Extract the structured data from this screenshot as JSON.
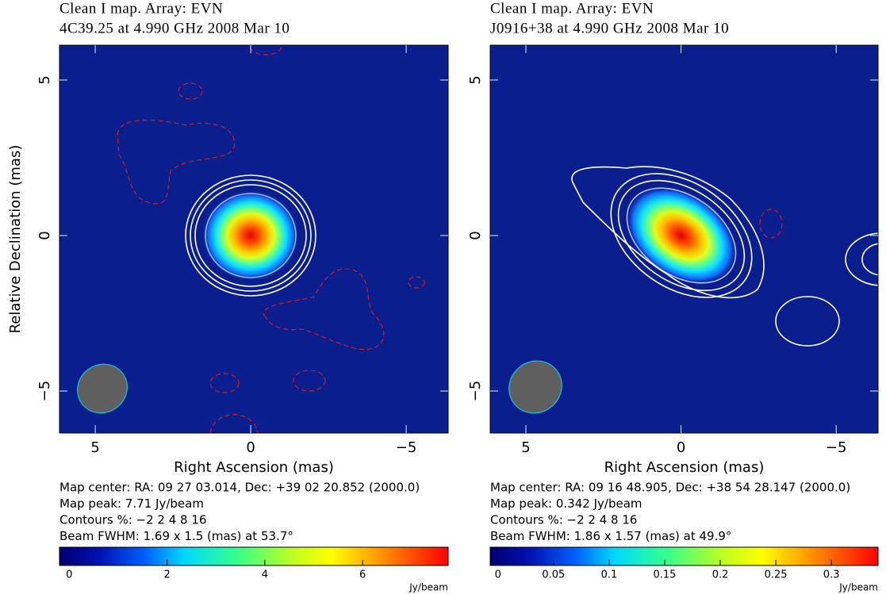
{
  "chart_data": [
    {
      "type": "map",
      "title": "Clean I map.  Array:  EVN",
      "subtitle": "4C39.25 at 4.990 GHz 2008 Mar 10",
      "x_label": "Right Ascension  (mas)",
      "y_label": "Relative Declination  (mas)",
      "xlim": [
        6.15,
        -6.35
      ],
      "ylim": [
        -6.35,
        6.12
      ],
      "xticks": [
        5,
        0,
        {
          "value": -5,
          "label": "−5"
        }
      ],
      "yticks": [
        5,
        0,
        {
          "value": -5,
          "label": "−5"
        }
      ],
      "notes": [
        "Map center:  RA: 09 27 03.014,  Dec: +39 02 20.852 (2000.0)",
        "Map peak: 7.71 Jy/beam",
        "Contours %: −2 2 4 8 16",
        "Beam FWHM: 1.69 x 1.5 (mas) at 53.7°"
      ],
      "colorbar": {
        "lim": [
          -0.2,
          7.75
        ],
        "ticks": [
          0,
          2,
          4,
          6
        ],
        "label": "Jy/beam"
      }
    },
    {
      "type": "map",
      "title": "Clean I map.  Array:  EVN",
      "subtitle": "J0916+38 at 4.990 GHz 2008 Mar 10",
      "x_label": "Right Ascension  (mas)",
      "xlim": [
        6.15,
        -6.35
      ],
      "ylim": [
        -6.35,
        6.12
      ],
      "xticks": [
        5,
        0,
        {
          "value": -5,
          "label": "−5"
        }
      ],
      "yticks": [
        5,
        0,
        {
          "value": -5,
          "label": "−5"
        }
      ],
      "notes": [
        "Map center:  RA: 09 16 48.905,  Dec: +38 54 28.147 (2000.0)",
        "Map peak: 0.342 Jy/beam",
        "Contours %: −2 2 4 8 16",
        "Beam FWHM: 1.86 x 1.57 (mas) at 49.9°"
      ],
      "colorbar": {
        "lim": [
          -0.007,
          0.342
        ],
        "ticks": [
          0,
          0.05,
          0.1,
          0.15,
          0.2,
          0.25,
          0.3
        ],
        "label": "Jy/beam"
      }
    }
  ]
}
